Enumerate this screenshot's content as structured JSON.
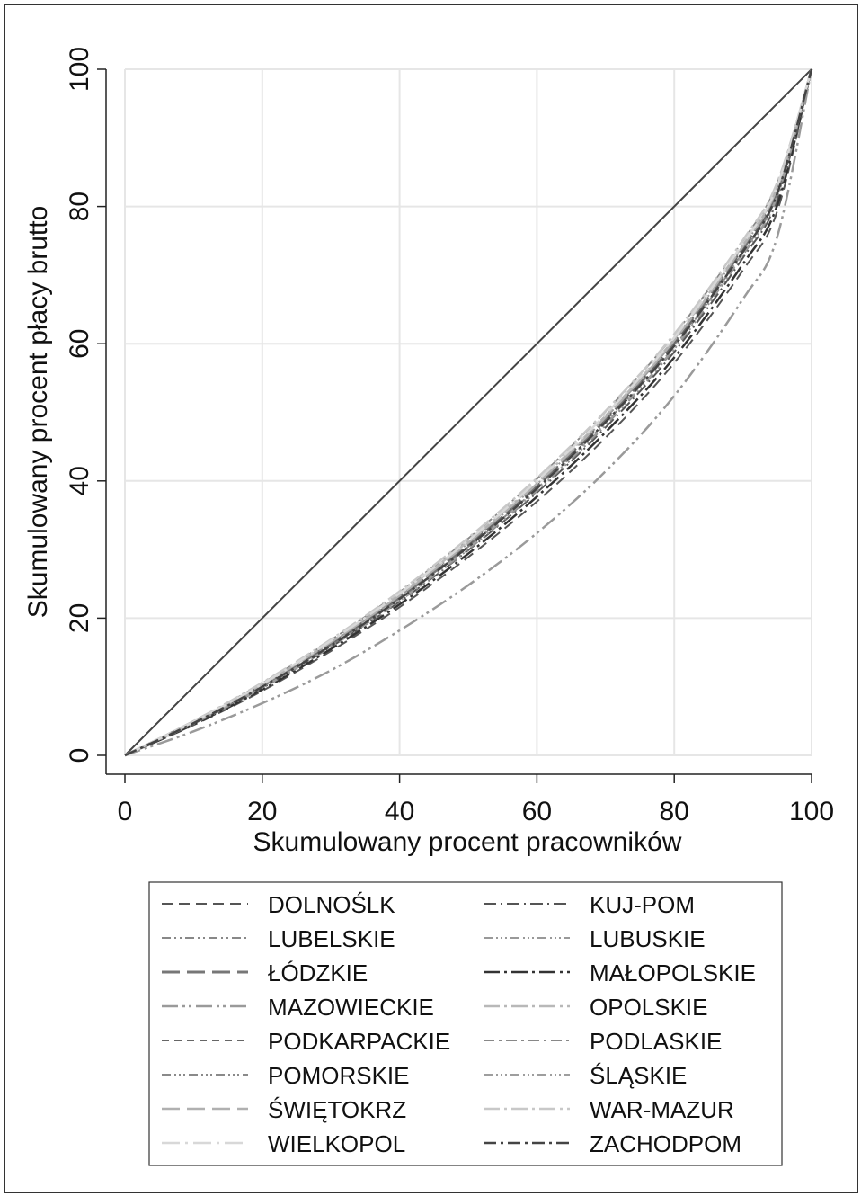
{
  "chart_data": {
    "type": "line",
    "xlabel": "Skumulowany procent pracowników",
    "ylabel": "Skumulowany procent płacy brutto",
    "xlim": [
      0,
      100
    ],
    "ylim": [
      0,
      100
    ],
    "x_ticks": [
      "0",
      "20",
      "40",
      "60",
      "80",
      "100"
    ],
    "y_ticks": [
      "0",
      "20",
      "40",
      "60",
      "80",
      "100"
    ],
    "grid": true,
    "legend_position": "bottom",
    "x": [
      0,
      10,
      20,
      30,
      40,
      50,
      60,
      70,
      80,
      90,
      95,
      100
    ],
    "equality_line": {
      "x": [
        0,
        100
      ],
      "y": [
        0,
        100
      ]
    },
    "series": [
      {
        "name": "DOLNOŚLK",
        "color": "#555555",
        "dash": "12,7",
        "width": 2,
        "values": [
          0,
          4.4,
          9.4,
          15.2,
          21.6,
          28.9,
          37.0,
          46.3,
          57.2,
          70.7,
          79.3,
          100
        ]
      },
      {
        "name": "KUJ-POM",
        "color": "#555555",
        "dash": "14,5,2,5",
        "width": 2,
        "values": [
          0,
          4.6,
          9.8,
          15.8,
          22.4,
          29.9,
          38.3,
          47.8,
          58.8,
          72.5,
          81.0,
          100
        ]
      },
      {
        "name": "LUBELSKIE",
        "color": "#888888",
        "dash": "10,4,2,4,2,4",
        "width": 2,
        "values": [
          0,
          4.7,
          10.0,
          16.1,
          22.8,
          30.4,
          38.9,
          48.5,
          59.6,
          73.3,
          81.8,
          100
        ]
      },
      {
        "name": "LUBUSKIE",
        "color": "#999999",
        "dash": "10,4,2,3,2,3,2,4",
        "width": 2,
        "values": [
          0,
          4.8,
          10.2,
          16.4,
          23.2,
          30.9,
          39.5,
          49.2,
          60.4,
          74.1,
          82.6,
          100
        ]
      },
      {
        "name": "ŁÓDZKIE",
        "color": "#777777",
        "dash": "20,8",
        "width": 3,
        "values": [
          0,
          4.8,
          10.1,
          16.2,
          23.0,
          30.6,
          39.2,
          48.9,
          60.0,
          73.8,
          82.2,
          100
        ]
      },
      {
        "name": "MAŁOPOLSKIE",
        "color": "#333333",
        "dash": "18,5,3,5",
        "width": 2.5,
        "values": [
          0,
          4.5,
          9.6,
          15.5,
          22.0,
          29.4,
          37.7,
          47.1,
          58.0,
          71.6,
          80.2,
          100
        ]
      },
      {
        "name": "MAZOWIECKIE",
        "color": "#9a9a9a",
        "dash": "18,5,3,4,3,5",
        "width": 2.5,
        "values": [
          0,
          3.5,
          7.6,
          12.4,
          18.2,
          24.8,
          32.4,
          41.4,
          52.4,
          66.5,
          75.6,
          100
        ]
      },
      {
        "name": "OPOLSKIE",
        "color": "#b8b8b8",
        "dash": "18,5,3,5",
        "width": 2.5,
        "values": [
          0,
          4.9,
          10.4,
          16.6,
          23.5,
          31.2,
          39.8,
          49.5,
          60.7,
          74.4,
          82.9,
          100
        ]
      },
      {
        "name": "PODKARPACKIE",
        "color": "#666666",
        "dash": "8,6",
        "width": 2,
        "values": [
          0,
          4.8,
          10.2,
          16.3,
          23.1,
          30.7,
          39.3,
          49.0,
          60.2,
          73.9,
          82.4,
          100
        ]
      },
      {
        "name": "PODLASKIE",
        "color": "#888888",
        "dash": "12,5,3,5",
        "width": 2,
        "values": [
          0,
          5.0,
          10.5,
          16.8,
          23.8,
          31.6,
          40.3,
          50.1,
          61.3,
          75.0,
          83.4,
          100
        ]
      },
      {
        "name": "POMORSKIE",
        "color": "#8a8a8a",
        "dash": "10,4,2,3,2,3,2,4",
        "width": 2,
        "values": [
          0,
          4.6,
          9.8,
          15.8,
          22.5,
          30.0,
          38.5,
          48.1,
          59.2,
          72.9,
          81.4,
          100
        ]
      },
      {
        "name": "ŚLĄSKIE",
        "color": "#9e9e9e",
        "dash": "10,4,2,3,2,3,2,4",
        "width": 2,
        "values": [
          0,
          4.7,
          9.9,
          15.9,
          22.6,
          30.2,
          38.7,
          48.3,
          59.4,
          73.1,
          81.6,
          100
        ]
      },
      {
        "name": "ŚWIĘTOKRZ",
        "color": "#b0b0b0",
        "dash": "20,8",
        "width": 2.5,
        "values": [
          0,
          4.8,
          10.3,
          16.5,
          23.3,
          31.0,
          39.6,
          49.3,
          60.5,
          74.2,
          82.7,
          100
        ]
      },
      {
        "name": "WAR-MAZUR",
        "color": "#c8c8c8",
        "dash": "18,5,3,5",
        "width": 2.5,
        "values": [
          0,
          5.0,
          10.6,
          16.9,
          23.9,
          31.7,
          40.4,
          50.2,
          61.4,
          75.1,
          83.5,
          100
        ]
      },
      {
        "name": "WIELKOPOL",
        "color": "#d8d8d8",
        "dash": "20,6,3,6",
        "width": 2.5,
        "values": [
          0,
          4.9,
          10.4,
          16.7,
          23.6,
          31.3,
          40.0,
          49.7,
          60.9,
          74.6,
          83.0,
          100
        ]
      },
      {
        "name": "ZACHODPOM",
        "color": "#444444",
        "dash": "14,5,3,5",
        "width": 2.5,
        "values": [
          0,
          4.7,
          10.0,
          16.0,
          22.8,
          30.4,
          38.9,
          48.6,
          59.7,
          73.4,
          81.9,
          100
        ]
      }
    ]
  }
}
